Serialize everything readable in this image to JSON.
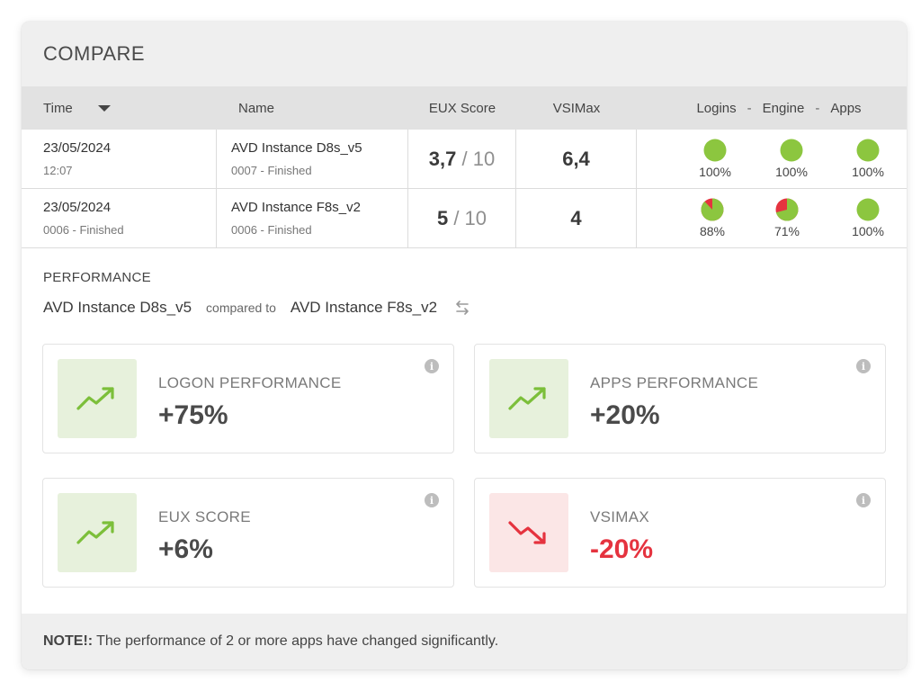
{
  "header": {
    "title": "COMPARE"
  },
  "table": {
    "columns": {
      "time": "Time",
      "name": "Name",
      "eux": "EUX Score",
      "vsimax": "VSIMax",
      "logins": "Logins",
      "sep1": "-",
      "engine": "Engine",
      "sep2": "-",
      "apps": "Apps"
    },
    "rows": [
      {
        "date": "23/05/2024",
        "time_sub": "12:07",
        "name": "AVD Instance D8s_v5",
        "name_sub": "0007 - Finished",
        "eux_score": "3,7",
        "eux_den": "/ 10",
        "vsimax": "6,4",
        "logins": {
          "label": "100%",
          "fraction": 1.0
        },
        "engine": {
          "label": "100%",
          "fraction": 1.0
        },
        "apps": {
          "label": "100%",
          "fraction": 1.0
        }
      },
      {
        "date": "23/05/2024",
        "time_sub": "0006 - Finished",
        "name": "AVD Instance F8s_v2",
        "name_sub": "0006 - Finished",
        "eux_score": "5",
        "eux_den": "/ 10",
        "vsimax": "4",
        "logins": {
          "label": "88%",
          "fraction": 0.88
        },
        "engine": {
          "label": "71%",
          "fraction": 0.71
        },
        "apps": {
          "label": "100%",
          "fraction": 1.0
        }
      }
    ]
  },
  "performance": {
    "title": "PERFORMANCE",
    "instance_a": "AVD Instance D8s_v5",
    "compared_to": "compared to",
    "instance_b": "AVD Instance F8s_v2",
    "tiles": [
      {
        "label": "LOGON PERFORMANCE",
        "value": "+75%",
        "trend": "up",
        "icon": "trend-up-icon"
      },
      {
        "label": "APPS PERFORMANCE",
        "value": "+20%",
        "trend": "up",
        "icon": "trend-up-icon"
      },
      {
        "label": "EUX SCORE",
        "value": "+6%",
        "trend": "up",
        "icon": "trend-up-icon"
      },
      {
        "label": "VSIMAX",
        "value": "-20%",
        "trend": "down",
        "icon": "trend-down-icon"
      }
    ]
  },
  "note": {
    "label": "NOTE!:",
    "text": "The performance of 2 or more apps have changed significantly."
  },
  "colors": {
    "good": "#8cc63f",
    "bad": "#e5333f",
    "up_bg": "#e7f1dc",
    "down_bg": "#fbe6e6"
  }
}
